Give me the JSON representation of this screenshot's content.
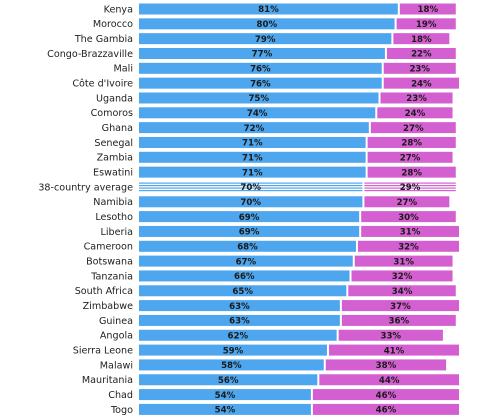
{
  "chart_data": {
    "type": "bar",
    "stacked": true,
    "orientation": "horizontal",
    "value_format": "percent",
    "highlight_category": "38-country average",
    "categories": [
      "Kenya",
      "Morocco",
      "The Gambia",
      "Congo-Brazzaville",
      "Mali",
      "Côte d'Ivoire",
      "Uganda",
      "Comoros",
      "Ghana",
      "Senegal",
      "Zambia",
      "Eswatini",
      "38-country average",
      "Namibia",
      "Lesotho",
      "Liberia",
      "Cameroon",
      "Botswana",
      "Tanzania",
      "South Africa",
      "Zimbabwe",
      "Guinea",
      "Angola",
      "Sierra Leone",
      "Malawi",
      "Mauritania",
      "Chad",
      "Togo"
    ],
    "series": [
      {
        "color": "#4DA6EE",
        "values": [
          81,
          80,
          79,
          77,
          76,
          76,
          75,
          74,
          72,
          71,
          71,
          71,
          70,
          70,
          69,
          69,
          68,
          67,
          66,
          65,
          63,
          63,
          62,
          59,
          58,
          56,
          54,
          54
        ]
      },
      {
        "color": "#D45FD0",
        "values": [
          18,
          19,
          18,
          22,
          23,
          24,
          23,
          24,
          27,
          28,
          27,
          28,
          29,
          27,
          30,
          31,
          32,
          31,
          32,
          34,
          37,
          36,
          33,
          41,
          38,
          44,
          46,
          46
        ]
      }
    ]
  }
}
